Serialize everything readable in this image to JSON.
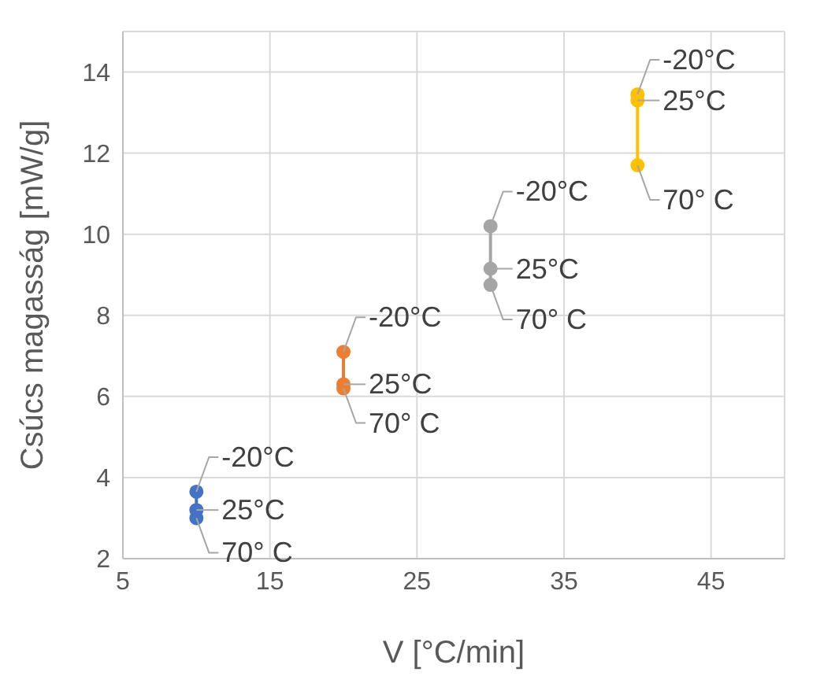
{
  "chart_data": {
    "type": "line",
    "xlabel": "V [°C/min]",
    "ylabel": "Csúcs magasság [mW/g]",
    "xlim": [
      5,
      50
    ],
    "xticks": [
      5,
      15,
      25,
      35,
      45
    ],
    "ylim": [
      2,
      15
    ],
    "yticks": [
      2,
      4,
      6,
      8,
      10,
      12,
      14
    ],
    "grid": true,
    "marker": "circle",
    "line_style": "solid",
    "series": [
      {
        "color": "#4472c4",
        "x": [
          10,
          10,
          10
        ],
        "values": [
          3.65,
          3.2,
          3.0
        ]
      },
      {
        "color": "#ed7d31",
        "x": [
          20,
          20,
          20
        ],
        "values": [
          7.1,
          6.3,
          6.2
        ]
      },
      {
        "color": "#a5a5a5",
        "x": [
          30,
          30,
          30
        ],
        "values": [
          10.2,
          9.15,
          8.75
        ]
      },
      {
        "color": "#ffc000",
        "x": [
          40,
          40,
          40
        ],
        "values": [
          13.45,
          13.3,
          11.7
        ]
      }
    ],
    "annotations": [
      {
        "text": "-20°C",
        "x": 10,
        "y": 3.65
      },
      {
        "text": "25°C",
        "x": 10,
        "y": 3.2
      },
      {
        "text": "70° C",
        "x": 10,
        "y": 3.0
      },
      {
        "text": "-20°C",
        "x": 20,
        "y": 7.1
      },
      {
        "text": "25°C",
        "x": 20,
        "y": 6.3
      },
      {
        "text": "70° C",
        "x": 20,
        "y": 6.2
      },
      {
        "text": "-20°C",
        "x": 30,
        "y": 10.2
      },
      {
        "text": "25°C",
        "x": 30,
        "y": 9.15
      },
      {
        "text": "70° C",
        "x": 30,
        "y": 8.75
      },
      {
        "text": "-20°C",
        "x": 40,
        "y": 13.45
      },
      {
        "text": "25°C",
        "x": 40,
        "y": 13.3
      },
      {
        "text": "70° C",
        "x": 40,
        "y": 11.7
      }
    ]
  }
}
